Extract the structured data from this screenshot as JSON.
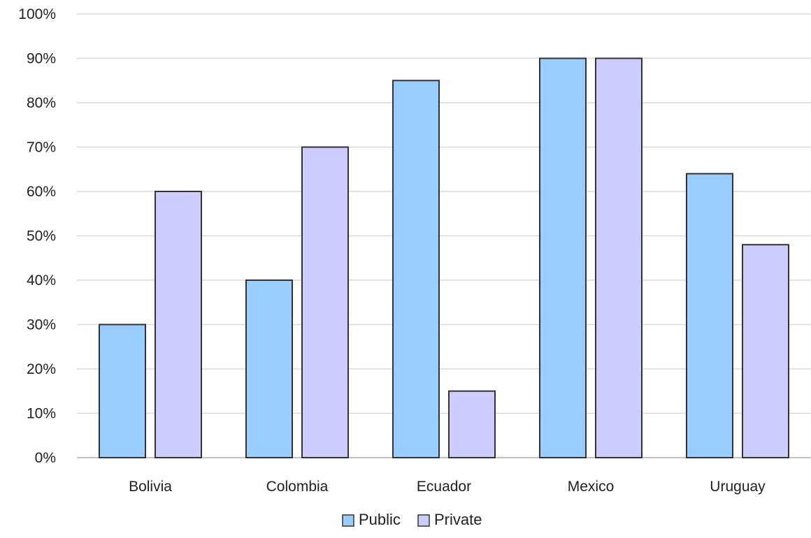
{
  "chart_data": {
    "type": "bar",
    "categories": [
      "Bolivia",
      "Colombia",
      "Ecuador",
      "Mexico",
      "Uruguay"
    ],
    "series": [
      {
        "name": "Public",
        "color": "#99ccff",
        "values": [
          30,
          40,
          85,
          90,
          64
        ]
      },
      {
        "name": "Private",
        "color": "#ccccff",
        "values": [
          60,
          70,
          15,
          90,
          48
        ]
      }
    ],
    "y_ticks": [
      "0%",
      "10%",
      "20%",
      "30%",
      "40%",
      "50%",
      "60%",
      "70%",
      "80%",
      "90%",
      "100%"
    ],
    "ylim": [
      0,
      100
    ],
    "grid": true,
    "legend_position": "bottom-center",
    "bar_outline_color": "#333333",
    "grid_color": "#d9d9d9"
  }
}
